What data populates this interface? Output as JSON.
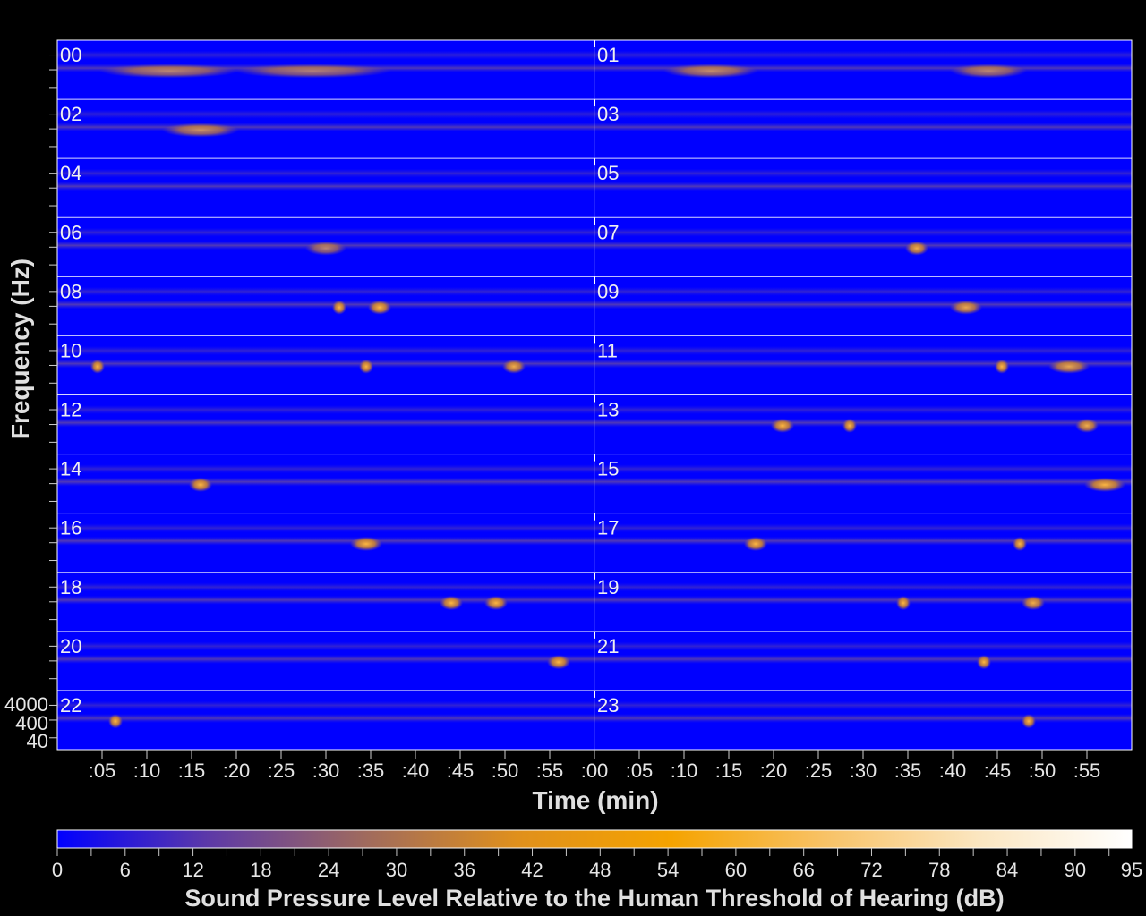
{
  "chart_data": {
    "type": "heatmap",
    "title": "",
    "xlabel": "Time (min)",
    "ylabel": "Frequency (Hz)",
    "colorbar_label": "Sound Pressure Level Relative to the Human Threshold of Hearing (dB)",
    "colorbar_ticks": [
      "0",
      "6",
      "12",
      "18",
      "24",
      "30",
      "36",
      "42",
      "48",
      "54",
      "60",
      "66",
      "72",
      "78",
      "84",
      "90",
      "95"
    ],
    "colorbar_range": [
      0,
      95
    ],
    "colormap": [
      "#0000ff",
      "#5e3aa6",
      "#9f6a5e",
      "#e0901c",
      "#f5a300",
      "#f8c266",
      "#fbe6c0",
      "#ffffff"
    ],
    "x_ticks": [
      ":05",
      ":10",
      ":15",
      ":20",
      ":25",
      ":30",
      ":35",
      ":40",
      ":45",
      ":50",
      ":55",
      ":00",
      ":05",
      ":10",
      ":15",
      ":20",
      ":25",
      ":30",
      ":35",
      ":40",
      ":45",
      ":50",
      ":55"
    ],
    "y_ticks": [
      "4000",
      "400",
      "40"
    ],
    "hour_labels": [
      "00",
      "01",
      "02",
      "03",
      "04",
      "05",
      "06",
      "07",
      "08",
      "09",
      "10",
      "11",
      "12",
      "13",
      "14",
      "15",
      "16",
      "17",
      "18",
      "19",
      "20",
      "21",
      "22",
      "23"
    ],
    "layout": "12 rows x 2 columns, each panel = one hour (60 min)",
    "background_color": "#0000ff",
    "grid": false,
    "events": [
      {
        "hour": "00",
        "start_min": 5,
        "end_min": 20,
        "level_db": 18
      },
      {
        "hour": "00",
        "start_min": 20,
        "end_min": 37,
        "level_db": 16
      },
      {
        "hour": "01",
        "start_min": 8,
        "end_min": 18,
        "level_db": 20
      },
      {
        "hour": "01",
        "start_min": 40,
        "end_min": 48,
        "level_db": 18
      },
      {
        "hour": "02",
        "start_min": 12,
        "end_min": 20,
        "level_db": 22
      },
      {
        "hour": "06",
        "start_min": 28,
        "end_min": 32,
        "level_db": 18
      },
      {
        "hour": "07",
        "start_min": 35,
        "end_min": 37,
        "level_db": 30
      },
      {
        "hour": "08",
        "start_min": 31,
        "end_min": 32,
        "level_db": 44
      },
      {
        "hour": "08",
        "start_min": 35,
        "end_min": 37,
        "level_db": 40
      },
      {
        "hour": "09",
        "start_min": 40,
        "end_min": 43,
        "level_db": 28
      },
      {
        "hour": "10",
        "start_min": 4,
        "end_min": 5,
        "level_db": 32
      },
      {
        "hour": "10",
        "start_min": 34,
        "end_min": 35,
        "level_db": 36
      },
      {
        "hour": "10",
        "start_min": 50,
        "end_min": 52,
        "level_db": 30
      },
      {
        "hour": "11",
        "start_min": 45,
        "end_min": 46,
        "level_db": 34
      },
      {
        "hour": "11",
        "start_min": 51,
        "end_min": 55,
        "level_db": 28
      },
      {
        "hour": "13",
        "start_min": 20,
        "end_min": 22,
        "level_db": 34
      },
      {
        "hour": "13",
        "start_min": 28,
        "end_min": 29,
        "level_db": 40
      },
      {
        "hour": "13",
        "start_min": 54,
        "end_min": 56,
        "level_db": 30
      },
      {
        "hour": "14",
        "start_min": 15,
        "end_min": 17,
        "level_db": 36
      },
      {
        "hour": "15",
        "start_min": 55,
        "end_min": 59,
        "level_db": 32
      },
      {
        "hour": "16",
        "start_min": 33,
        "end_min": 36,
        "level_db": 34
      },
      {
        "hour": "17",
        "start_min": 17,
        "end_min": 19,
        "level_db": 38
      },
      {
        "hour": "17",
        "start_min": 47,
        "end_min": 48,
        "level_db": 46
      },
      {
        "hour": "18",
        "start_min": 43,
        "end_min": 45,
        "level_db": 36
      },
      {
        "hour": "18",
        "start_min": 48,
        "end_min": 50,
        "level_db": 40
      },
      {
        "hour": "19",
        "start_min": 34,
        "end_min": 35,
        "level_db": 46
      },
      {
        "hour": "19",
        "start_min": 48,
        "end_min": 50,
        "level_db": 30
      },
      {
        "hour": "20",
        "start_min": 55,
        "end_min": 57,
        "level_db": 36
      },
      {
        "hour": "21",
        "start_min": 43,
        "end_min": 44,
        "level_db": 40
      },
      {
        "hour": "22",
        "start_min": 6,
        "end_min": 7,
        "level_db": 44
      },
      {
        "hour": "23",
        "start_min": 48,
        "end_min": 49,
        "level_db": 40
      }
    ]
  }
}
